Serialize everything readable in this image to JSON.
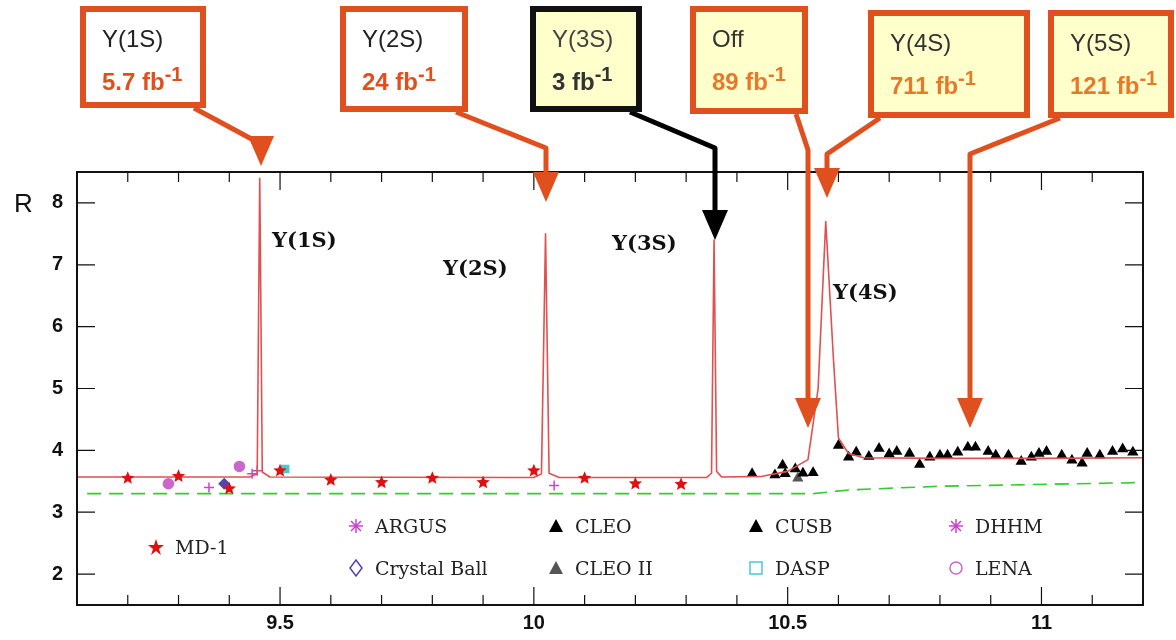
{
  "chart_data": {
    "type": "scatter",
    "ylabel": "R",
    "xlim": [
      9.1,
      11.2
    ],
    "ylim": [
      1.5,
      8.5
    ],
    "xticks": [
      {
        "value": 9.2,
        "label": null
      },
      {
        "value": 9.3,
        "label": null
      },
      {
        "value": 9.4,
        "label": null
      },
      9.5,
      {
        "value": 9.6,
        "label": null
      },
      {
        "value": 9.7,
        "label": null
      },
      {
        "value": 9.8,
        "label": null
      },
      {
        "value": 9.9,
        "label": null
      },
      10,
      {
        "value": 10.1,
        "label": null
      },
      {
        "value": 10.2,
        "label": null
      },
      {
        "value": 10.3,
        "label": null
      },
      {
        "value": 10.4,
        "label": null
      },
      10.5,
      {
        "value": 10.6,
        "label": null
      },
      {
        "value": 10.7,
        "label": null
      },
      {
        "value": 10.8,
        "label": null
      },
      {
        "value": 10.9,
        "label": null
      },
      11,
      {
        "value": 11.1,
        "label": null
      }
    ],
    "yticks": [
      2,
      3,
      4,
      5,
      6,
      7,
      8
    ],
    "legend": "bottom",
    "series": [
      {
        "type": "line",
        "marker": "none",
        "color": "#e05050",
        "x": [
          9.1,
          9.44,
          9.455,
          9.46,
          9.465,
          9.48,
          10.0,
          10.015,
          10.023,
          10.03,
          10.05,
          10.34,
          10.35,
          10.355,
          10.36,
          10.37,
          10.45,
          10.5,
          10.54,
          10.56,
          10.575,
          10.59,
          10.6,
          10.62,
          10.65,
          10.8,
          11.0,
          11.2
        ],
        "values": [
          3.57,
          3.57,
          3.62,
          8.4,
          3.65,
          3.57,
          3.56,
          3.62,
          7.5,
          3.63,
          3.56,
          3.56,
          3.63,
          7.4,
          3.66,
          3.57,
          3.58,
          3.66,
          3.85,
          5.0,
          7.7,
          5.5,
          4.2,
          3.95,
          3.88,
          3.87,
          3.87,
          3.88
        ]
      },
      {
        "type": "line",
        "marker": "none",
        "line_style": "dashed",
        "color": "#33cc33",
        "x": [
          9.12,
          10.55,
          10.62,
          10.8,
          11.2
        ],
        "values": [
          3.3,
          3.3,
          3.36,
          3.42,
          3.48
        ]
      },
      {
        "name": "MD-1",
        "marker": "star",
        "color": "#dd1111",
        "x": [
          9.2,
          9.3,
          9.4,
          9.5,
          9.6,
          9.7,
          9.8,
          9.9,
          10.0,
          10.1,
          10.2,
          10.29
        ],
        "values": [
          3.55,
          3.58,
          3.38,
          3.67,
          3.52,
          3.48,
          3.55,
          3.48,
          3.67,
          3.55,
          3.46,
          3.45
        ]
      },
      {
        "name": "ARGUS",
        "marker": "cross",
        "color": "#cc44cc",
        "x": [
          9.36,
          9.455
        ],
        "values": [
          3.4,
          3.67
        ]
      },
      {
        "name": "Crystal Ball",
        "marker": "diamond",
        "color": "#5544aa",
        "x": [
          9.39
        ],
        "values": [
          3.46
        ]
      },
      {
        "name": "CLEO",
        "marker": "triangle",
        "color": "#000000",
        "x": [
          10.475,
          10.49,
          10.495,
          10.515,
          10.53,
          10.55,
          10.6,
          10.62,
          10.635,
          10.66,
          10.68,
          10.7,
          10.715,
          10.74,
          10.76,
          10.78,
          10.8,
          10.815,
          10.835,
          10.855,
          10.87,
          10.895,
          10.91,
          10.935,
          10.96,
          10.98,
          10.995,
          11.01,
          11.04,
          11.06,
          11.08,
          11.115,
          11.14,
          11.16,
          11.18
        ],
        "values": [
          3.6,
          3.76,
          3.62,
          3.7,
          3.63,
          3.64,
          4.08,
          3.89,
          3.97,
          3.9,
          4.03,
          3.94,
          3.98,
          3.95,
          3.77,
          3.89,
          3.92,
          3.92,
          3.97,
          4.05,
          4.05,
          3.98,
          3.92,
          3.92,
          3.82,
          3.89,
          3.95,
          3.98,
          3.92,
          3.84,
          3.79,
          3.92,
          3.98,
          4.02,
          3.97
        ]
      },
      {
        "name": "CLEO II",
        "marker": "triangle",
        "color": "#555555",
        "x": [
          10.52
        ],
        "values": [
          3.55
        ]
      },
      {
        "name": "CUSB",
        "marker": "triangle",
        "color": "#000000",
        "x": [
          10.43,
          11.09
        ],
        "values": [
          3.62,
          3.95
        ]
      },
      {
        "name": "DASP",
        "marker": "square",
        "color": "#44cccc",
        "x": [
          9.51
        ],
        "values": [
          3.7
        ]
      },
      {
        "name": "DHHM",
        "marker": "cross",
        "color": "#cc44cc",
        "x": [
          9.445,
          10.04
        ],
        "values": [
          3.62,
          3.43
        ]
      },
      {
        "name": "LENA",
        "marker": "circle",
        "color": "#cc66cc",
        "x": [
          9.28,
          9.42
        ],
        "values": [
          3.46,
          3.74
        ]
      }
    ],
    "annotations": [
      "Y(1S)\n5.7 fb$^{-1}$",
      "Y(2S)\n24 fb$^{-1}$",
      "Y(3S)\n3 fb$^{-1}$",
      "Off\n89 fb$^{-1}$",
      "Y(4S)\n711 fb$^{-1}$",
      "Y(5S)\n121 fb$^{-1}$",
      "Υ(1S)",
      "Υ(2S)",
      "Υ(3S)",
      "Υ(4S)"
    ]
  }
}
